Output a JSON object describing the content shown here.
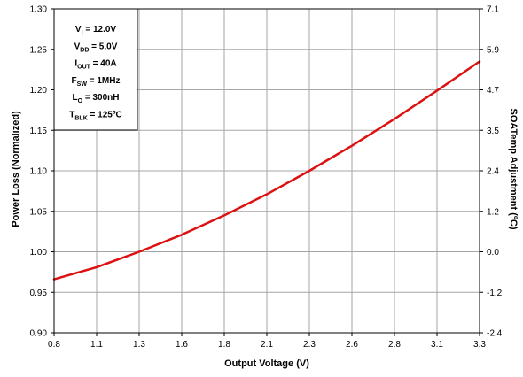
{
  "chart_data": {
    "type": "line",
    "xlabel": "Output Voltage (V)",
    "ylabel": "Power Loss (Normalized)",
    "y2label": "SOATemp Adjustment (ºC)",
    "xlim": [
      0.8,
      3.3
    ],
    "ylim": [
      0.9,
      1.3
    ],
    "y2lim": [
      -2.4,
      7.1
    ],
    "x_ticks": [
      "0.8",
      "1.1",
      "1.3",
      "1.6",
      "1.8",
      "2.1",
      "2.3",
      "2.6",
      "2.8",
      "3.1",
      "3.3"
    ],
    "y_ticks": [
      "0.90",
      "0.95",
      "1.00",
      "1.05",
      "1.10",
      "1.15",
      "1.20",
      "1.25",
      "1.30"
    ],
    "y2_ticks": [
      "-2.4",
      "-1.2",
      "0.0",
      "1.2",
      "2.4",
      "3.5",
      "4.7",
      "5.9",
      "7.1"
    ],
    "grid": true,
    "series": [
      {
        "color": "#dd1111",
        "x": [
          0.8,
          1.05,
          1.3,
          1.55,
          1.8,
          2.05,
          2.3,
          2.55,
          2.8,
          3.05,
          3.3
        ],
        "y": [
          0.966,
          0.981,
          1.0,
          1.021,
          1.045,
          1.071,
          1.1,
          1.131,
          1.164,
          1.199,
          1.235
        ]
      }
    ],
    "legend_position": "top-left",
    "conditions": [
      {
        "pre": "V",
        "sub": "I",
        "post": " = 12.0V"
      },
      {
        "pre": "V",
        "sub": "DD",
        "post": " = 5.0V"
      },
      {
        "pre": "I",
        "sub": "OUT",
        "post": " = 40A"
      },
      {
        "pre": "F",
        "sub": "SW",
        "post": " = 1MHz"
      },
      {
        "pre": "L",
        "sub": "O",
        "post": " = 300nH"
      },
      {
        "pre": "T",
        "sub": "BLK",
        "post": " = 125ºC"
      }
    ]
  }
}
